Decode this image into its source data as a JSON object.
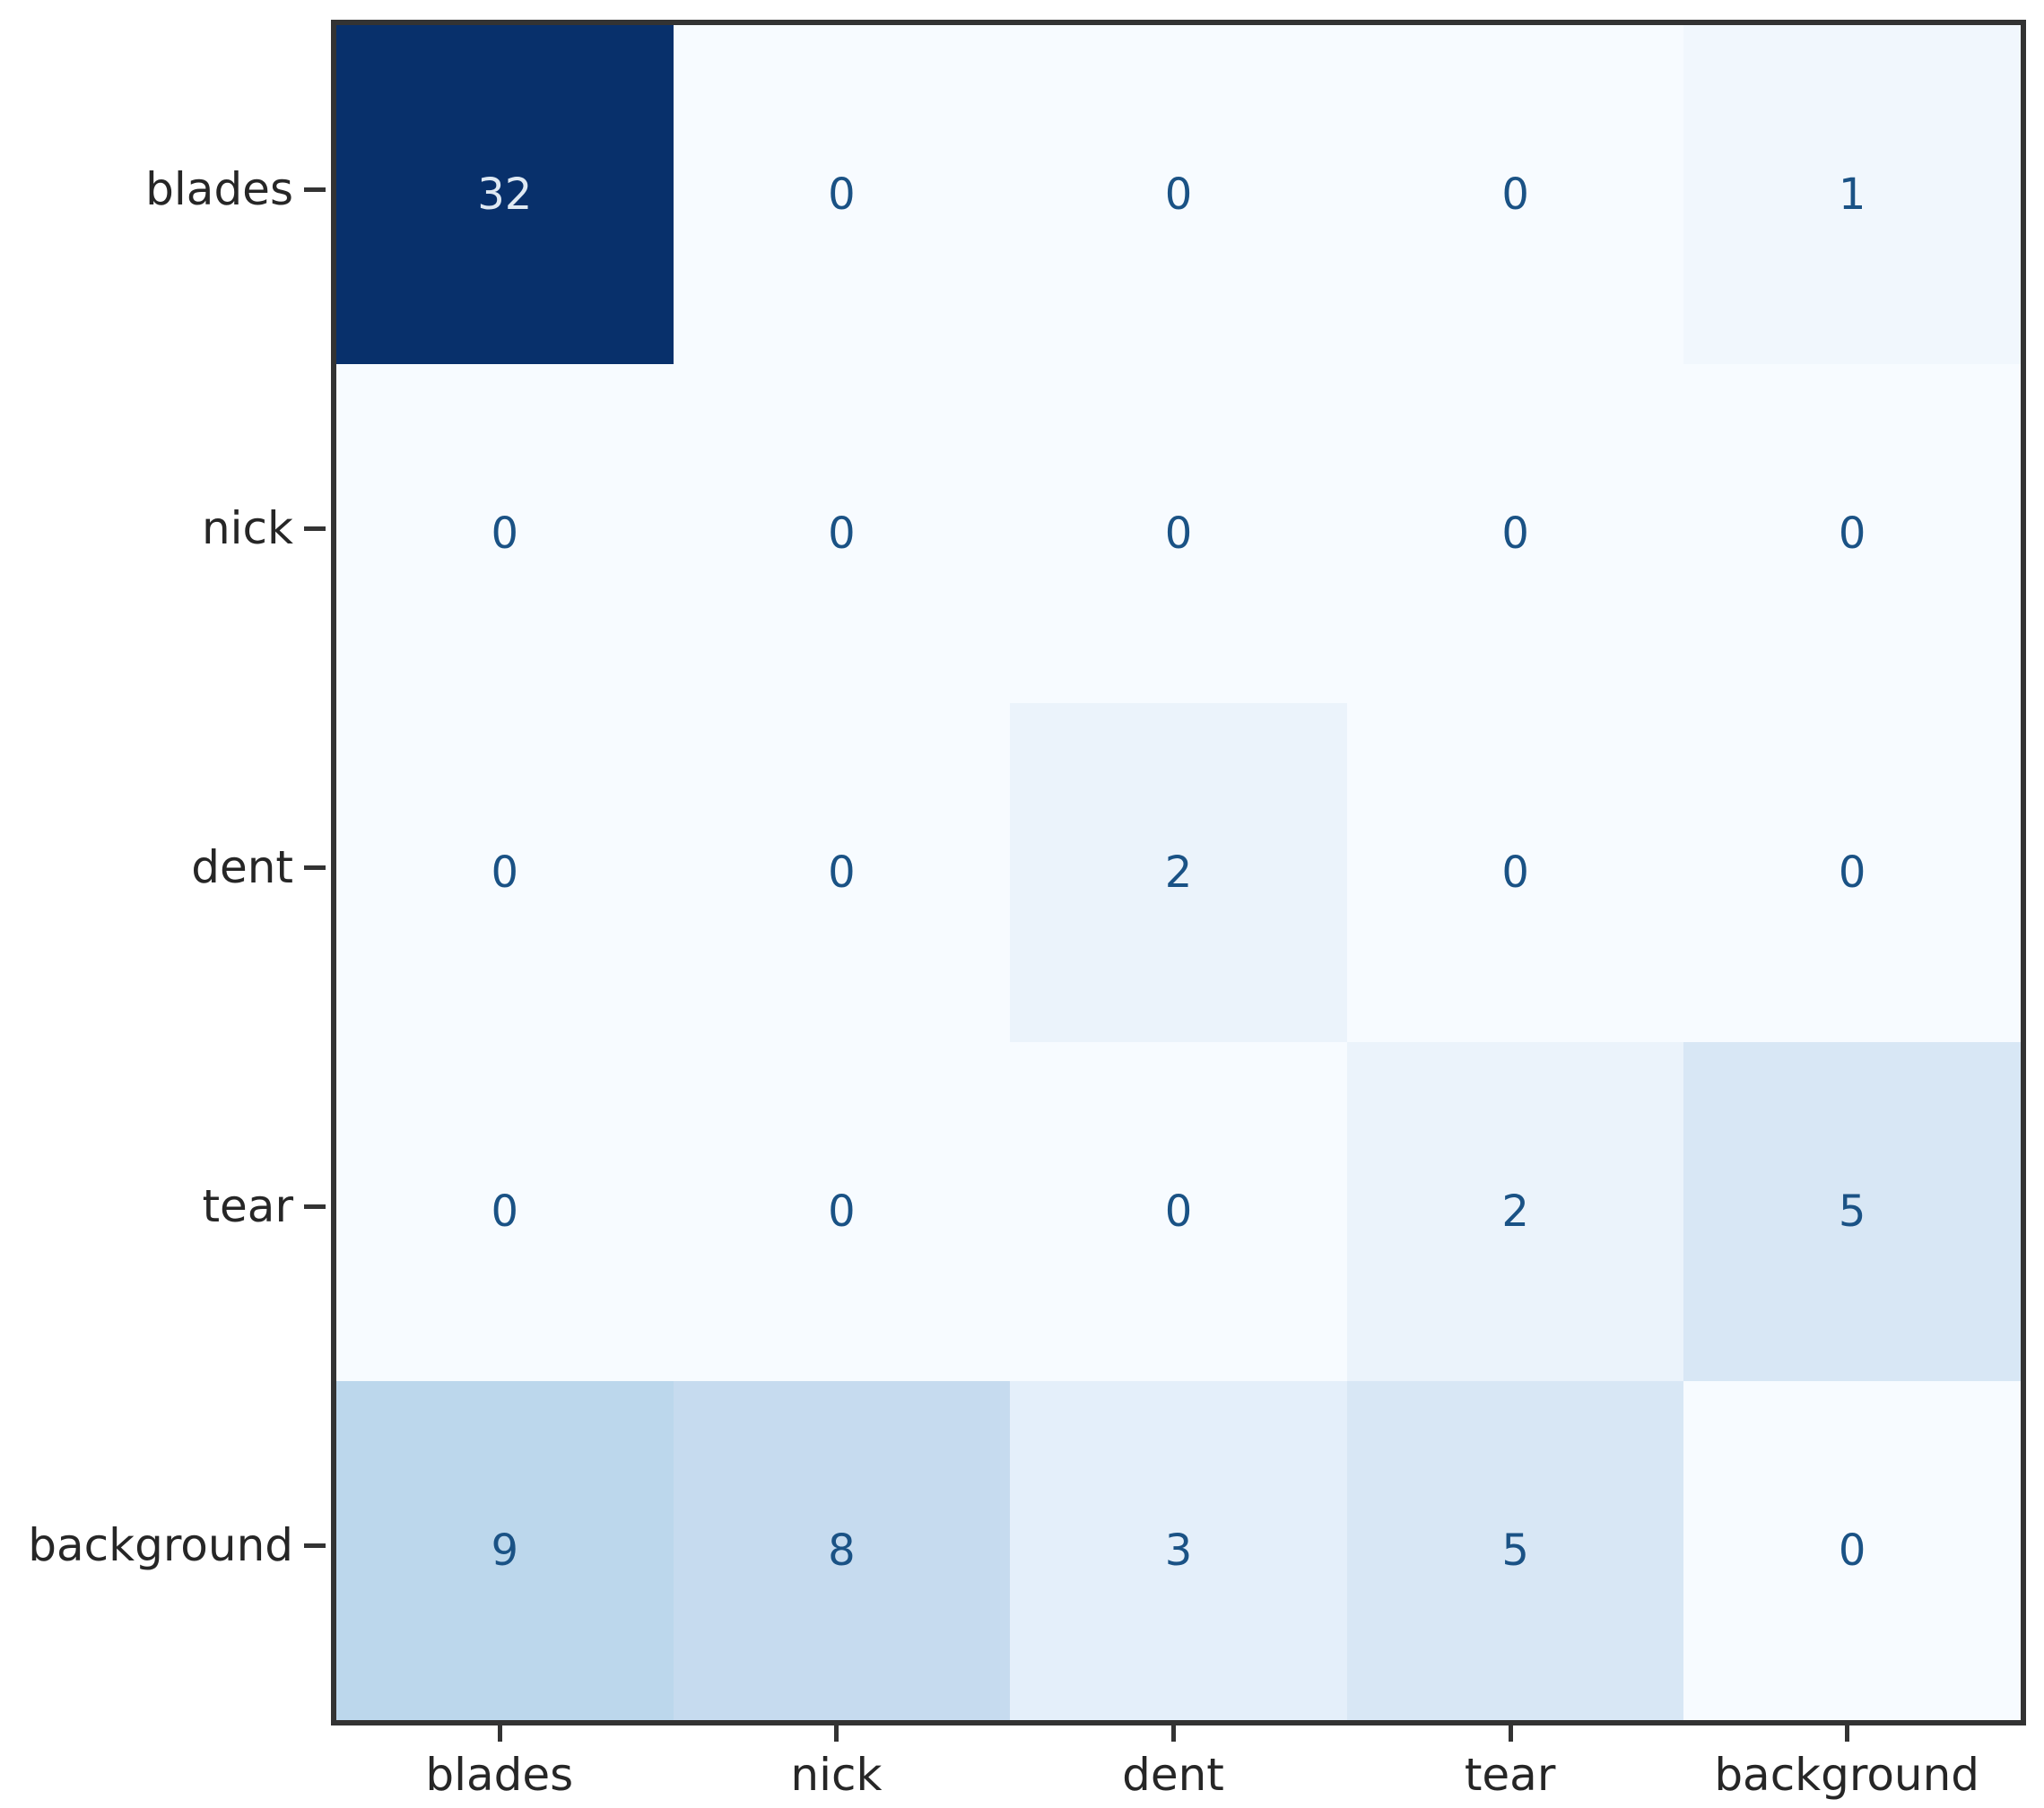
{
  "chart_data": {
    "type": "heatmap",
    "title": "",
    "xlabel": "",
    "ylabel": "",
    "rows": [
      "blades",
      "nick",
      "dent",
      "tear",
      "background"
    ],
    "columns": [
      "blades",
      "nick",
      "dent",
      "tear",
      "background"
    ],
    "matrix": [
      [
        32,
        0,
        0,
        0,
        1
      ],
      [
        0,
        0,
        0,
        0,
        0
      ],
      [
        0,
        0,
        2,
        0,
        0
      ],
      [
        0,
        0,
        0,
        2,
        5
      ],
      [
        9,
        8,
        3,
        5,
        0
      ]
    ],
    "colormap": "Blues",
    "vmin": 0,
    "vmax": 32,
    "value_colors": {
      "0": "#f7fbff",
      "1": "#f1f7fd",
      "2": "#ebf3fb",
      "3": "#e4effa",
      "5": "#d8e7f5",
      "8": "#c6dbef",
      "9": "#bcd7ec",
      "32": "#08306b"
    },
    "annotation_color_light_cells": "#1a5285",
    "annotation_color_dark_cells": "#dfe9f3",
    "axis_color": "#333333",
    "tick_label_color": "#262626",
    "legend": "none",
    "grid": "off"
  }
}
